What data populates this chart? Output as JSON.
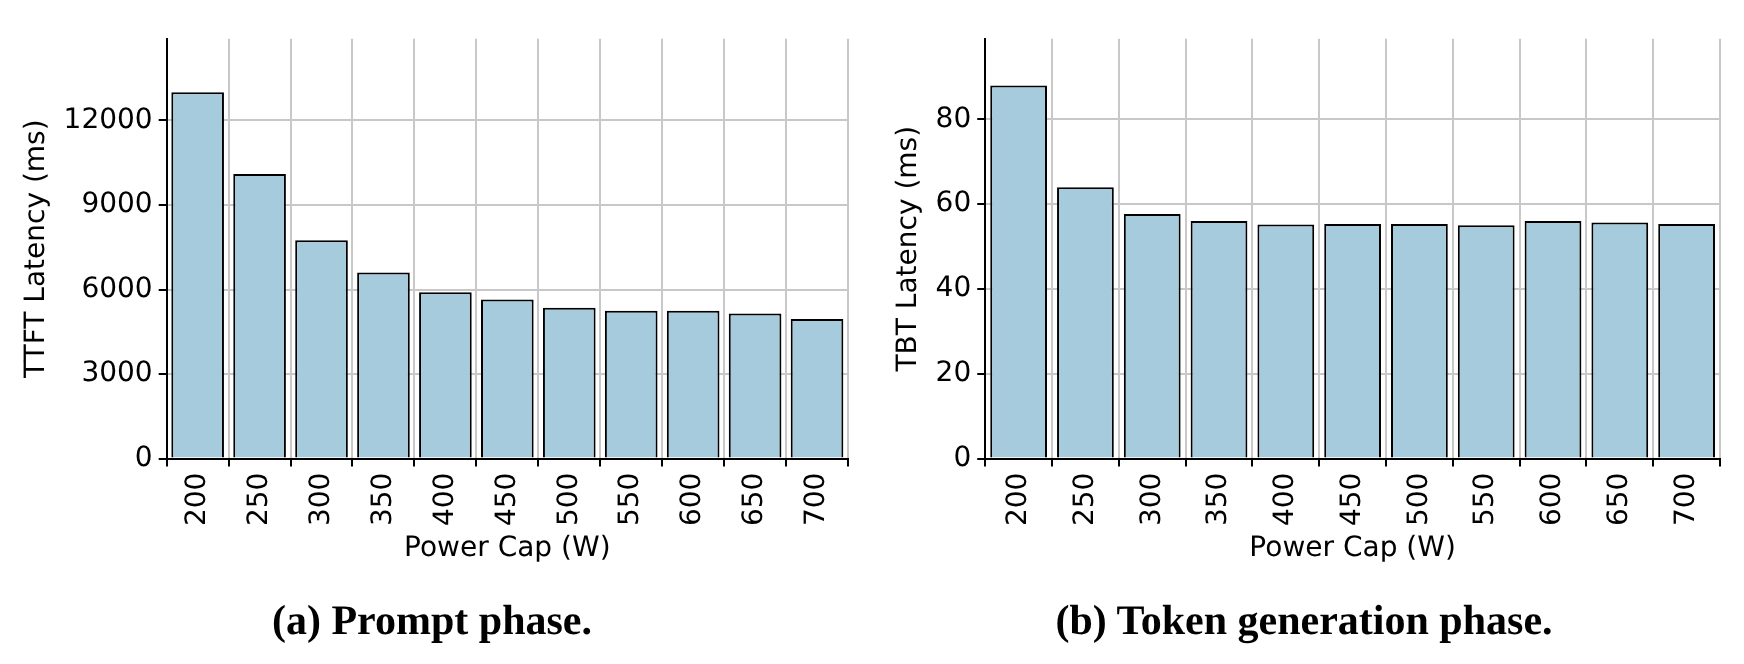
{
  "chart_data": [
    {
      "type": "bar",
      "title": "(a) Prompt phase.",
      "xlabel": "Power Cap (W)",
      "ylabel": "TTFT Latency (ms)",
      "categories": [
        "200",
        "250",
        "300",
        "350",
        "400",
        "450",
        "500",
        "550",
        "600",
        "650",
        "700"
      ],
      "values": [
        13000,
        10100,
        7750,
        6600,
        5900,
        5650,
        5350,
        5250,
        5250,
        5150,
        4950
      ],
      "color": "#a6cbdc",
      "ylim": [
        0,
        14900
      ],
      "yticks": [
        0,
        3000,
        6000,
        9000,
        12000
      ],
      "grid": true
    },
    {
      "type": "bar",
      "title": "(b) Token generation phase.",
      "xlabel": "Power Cap (W)",
      "ylabel": "TBT Latency (ms)",
      "categories": [
        "200",
        "250",
        "300",
        "350",
        "400",
        "450",
        "500",
        "550",
        "600",
        "650",
        "700"
      ],
      "values": [
        88,
        64,
        57.7,
        56,
        55.2,
        55.3,
        55.3,
        55,
        56,
        55.7,
        55.3
      ],
      "color": "#a6cbdc",
      "ylim": [
        0,
        99
      ],
      "yticks": [
        0,
        20,
        40,
        60,
        80
      ],
      "grid": true
    }
  ]
}
